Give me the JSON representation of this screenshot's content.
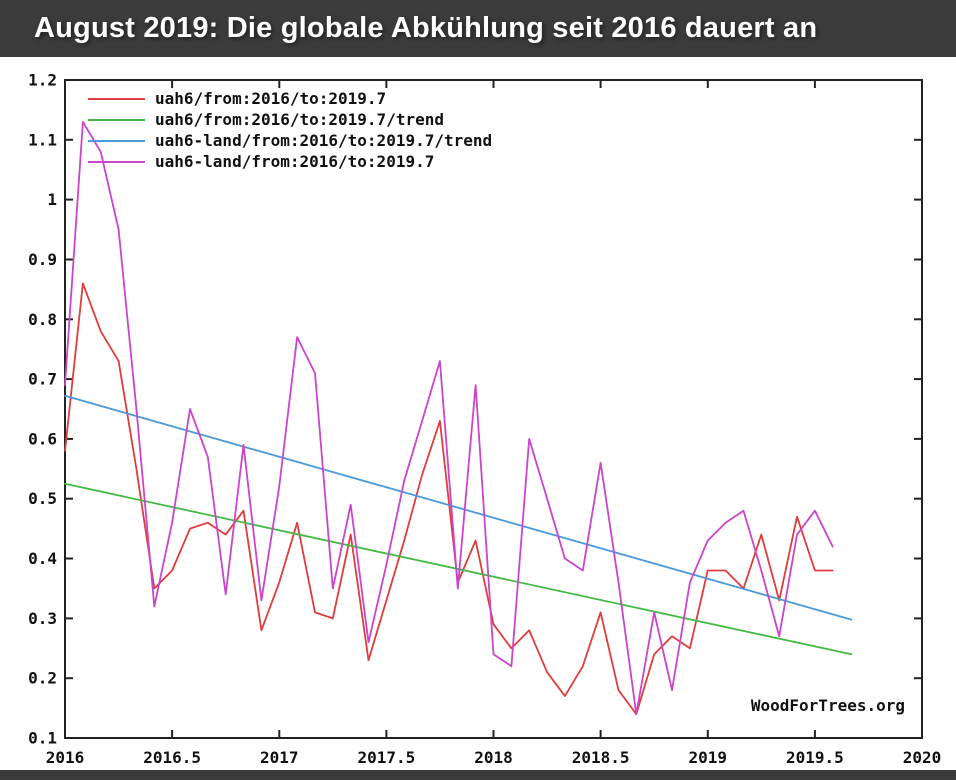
{
  "title_bar": {
    "text": "August 2019: Die globale Abkühlung seit 2016 dauert an",
    "bg_color": "#3b3b3b",
    "text_color": "#ffffff"
  },
  "watermark": "WoodForTrees.org",
  "chart_data": {
    "type": "line",
    "title": "",
    "xlabel": "",
    "ylabel": "",
    "xlim": [
      2016,
      2020
    ],
    "ylim": [
      0.1,
      1.2
    ],
    "grid": false,
    "legend_position": "top-left",
    "x_ticks": {
      "values": [
        2016,
        2016.5,
        2017,
        2017.5,
        2018,
        2018.5,
        2019,
        2019.5,
        2020
      ],
      "labels": [
        "2016",
        "2016.5",
        "2017",
        "2017.5",
        "2018",
        "2018.5",
        "2019",
        "2019.5",
        "2020"
      ]
    },
    "y_ticks": {
      "values": [
        0.1,
        0.2,
        0.3,
        0.4,
        0.5,
        0.6,
        0.7,
        0.8,
        0.9,
        1.0,
        1.1,
        1.2
      ],
      "labels": [
        "0.1",
        "0.2",
        "0.3",
        "0.4",
        "0.5",
        "0.6",
        "0.7",
        "0.8",
        "0.9",
        "1",
        "1.1",
        "1.2"
      ]
    },
    "x_start": 2016.0,
    "x_step": 0.0833333,
    "series": [
      {
        "id": "uah6",
        "name": "uah6/from:2016/to:2019.7",
        "color": "#e03c3c",
        "values": [
          0.58,
          0.86,
          0.78,
          0.73,
          0.55,
          0.35,
          0.38,
          0.45,
          0.46,
          0.44,
          0.48,
          0.28,
          0.36,
          0.46,
          0.31,
          0.3,
          0.44,
          0.23,
          0.33,
          0.43,
          0.54,
          0.63,
          0.36,
          0.43,
          0.29,
          0.25,
          0.28,
          0.21,
          0.17,
          0.22,
          0.31,
          0.18,
          0.14,
          0.24,
          0.27,
          0.25,
          0.38,
          0.38,
          0.35,
          0.44,
          0.33,
          0.47,
          0.38,
          0.38
        ]
      },
      {
        "id": "uah6_trend",
        "name": "uah6/from:2016/to:2019.7/trend",
        "color": "#44b944",
        "trend": {
          "x": [
            2016.0,
            2019.67
          ],
          "y": [
            0.525,
            0.24
          ]
        }
      },
      {
        "id": "uah6_land_trend",
        "name": "uah6-land/from:2016/to:2019.7/trend",
        "color": "#4a99d9",
        "trend": {
          "x": [
            2016.0,
            2019.67
          ],
          "y": [
            0.672,
            0.298
          ]
        }
      },
      {
        "id": "uah6_land",
        "name": "uah6-land/from:2016/to:2019.7",
        "color": "#cc44cc",
        "values": [
          0.69,
          1.13,
          1.08,
          0.95,
          0.65,
          0.32,
          0.46,
          0.65,
          0.57,
          0.34,
          0.59,
          0.33,
          0.52,
          0.77,
          0.71,
          0.35,
          0.49,
          0.26,
          0.39,
          0.53,
          0.63,
          0.73,
          0.35,
          0.69,
          0.24,
          0.22,
          0.6,
          0.5,
          0.4,
          0.38,
          0.56,
          0.36,
          0.14,
          0.31,
          0.18,
          0.36,
          0.43,
          0.46,
          0.48,
          0.38,
          0.27,
          0.44,
          0.48,
          0.42
        ]
      }
    ]
  }
}
